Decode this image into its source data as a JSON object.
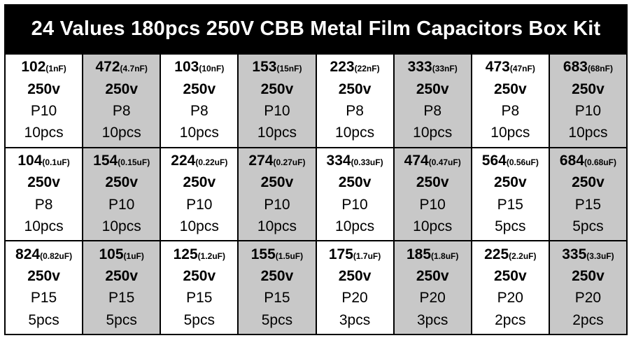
{
  "title": "24 Values 180pcs 250V CBB Metal Film Capacitors Box Kit",
  "colors": {
    "header_bg": "#000000",
    "header_text": "#ffffff",
    "cell_shade": "#c8c8c8",
    "cell_plain": "#ffffff",
    "grid_line": "#000000"
  },
  "items": [
    {
      "code": "102",
      "cap": "(1nF)",
      "voltage": "250v",
      "pitch": "P10",
      "qty": "10pcs",
      "shaded": false
    },
    {
      "code": "472",
      "cap": "(4.7nF)",
      "voltage": "250v",
      "pitch": "P8",
      "qty": "10pcs",
      "shaded": true
    },
    {
      "code": "103",
      "cap": "(10nF)",
      "voltage": "250v",
      "pitch": "P8",
      "qty": "10pcs",
      "shaded": false
    },
    {
      "code": "153",
      "cap": "(15nF)",
      "voltage": "250v",
      "pitch": "P10",
      "qty": "10pcs",
      "shaded": true
    },
    {
      "code": "223",
      "cap": "(22nF)",
      "voltage": "250v",
      "pitch": "P8",
      "qty": "10pcs",
      "shaded": false
    },
    {
      "code": "333",
      "cap": "(33nF)",
      "voltage": "250v",
      "pitch": "P8",
      "qty": "10pcs",
      "shaded": true
    },
    {
      "code": "473",
      "cap": "(47nF)",
      "voltage": "250v",
      "pitch": "P8",
      "qty": "10pcs",
      "shaded": false
    },
    {
      "code": "683",
      "cap": "(68nF)",
      "voltage": "250v",
      "pitch": "P10",
      "qty": "10pcs",
      "shaded": true
    },
    {
      "code": "104",
      "cap": "(0.1uF)",
      "voltage": "250v",
      "pitch": "P8",
      "qty": "10pcs",
      "shaded": false
    },
    {
      "code": "154",
      "cap": "(0.15uF)",
      "voltage": "250v",
      "pitch": "P10",
      "qty": "10pcs",
      "shaded": true
    },
    {
      "code": "224",
      "cap": "(0.22uF)",
      "voltage": "250v",
      "pitch": "P10",
      "qty": "10pcs",
      "shaded": false
    },
    {
      "code": "274",
      "cap": "(0.27uF)",
      "voltage": "250v",
      "pitch": "P10",
      "qty": "10pcs",
      "shaded": true
    },
    {
      "code": "334",
      "cap": "(0.33uF)",
      "voltage": "250v",
      "pitch": "P10",
      "qty": "10pcs",
      "shaded": false
    },
    {
      "code": "474",
      "cap": "(0.47uF)",
      "voltage": "250v",
      "pitch": "P10",
      "qty": "10pcs",
      "shaded": true
    },
    {
      "code": "564",
      "cap": "(0.56uF)",
      "voltage": "250v",
      "pitch": "P15",
      "qty": "5pcs",
      "shaded": false
    },
    {
      "code": "684",
      "cap": "(0.68uF)",
      "voltage": "250v",
      "pitch": "P15",
      "qty": "5pcs",
      "shaded": true
    },
    {
      "code": "824",
      "cap": "(0.82uF)",
      "voltage": "250v",
      "pitch": "P15",
      "qty": "5pcs",
      "shaded": false
    },
    {
      "code": "105",
      "cap": "(1uF)",
      "voltage": "250v",
      "pitch": "P15",
      "qty": "5pcs",
      "shaded": true
    },
    {
      "code": "125",
      "cap": "(1.2uF)",
      "voltage": "250v",
      "pitch": "P15",
      "qty": "5pcs",
      "shaded": false
    },
    {
      "code": "155",
      "cap": "(1.5uF)",
      "voltage": "250v",
      "pitch": "P15",
      "qty": "5pcs",
      "shaded": true
    },
    {
      "code": "175",
      "cap": "(1.7uF)",
      "voltage": "250v",
      "pitch": "P20",
      "qty": "3pcs",
      "shaded": false
    },
    {
      "code": "185",
      "cap": "(1.8uF)",
      "voltage": "250v",
      "pitch": "P20",
      "qty": "3pcs",
      "shaded": true
    },
    {
      "code": "225",
      "cap": "(2.2uF)",
      "voltage": "250v",
      "pitch": "P20",
      "qty": "2pcs",
      "shaded": false
    },
    {
      "code": "335",
      "cap": "(3.3uF)",
      "voltage": "250v",
      "pitch": "P20",
      "qty": "2pcs",
      "shaded": true
    }
  ]
}
